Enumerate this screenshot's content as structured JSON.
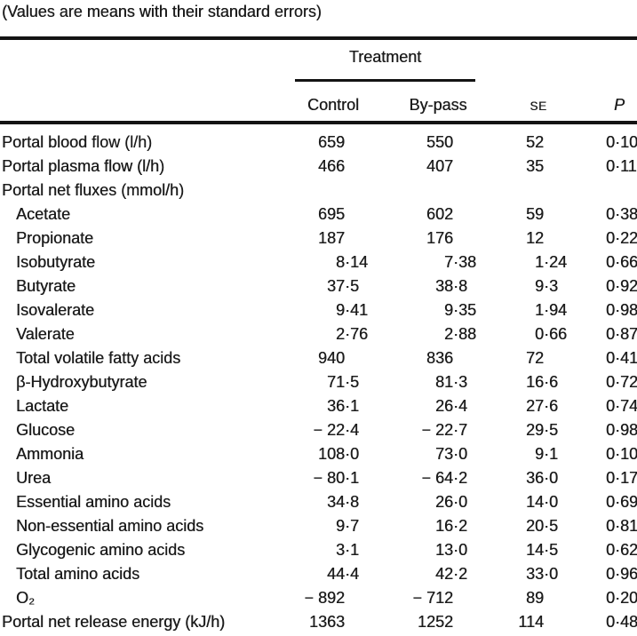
{
  "caption": "(Values are means with their standard errors)",
  "header": {
    "group_label": "Treatment",
    "control": "Control",
    "bypass": "By-pass",
    "se": "SE",
    "p": "P"
  },
  "table": {
    "rows": [
      {
        "label": "Portal blood flow (l/h)",
        "indent": false,
        "control": "659",
        "bypass": "550",
        "se": "52",
        "p": "0·10"
      },
      {
        "label": "Portal plasma flow (l/h)",
        "indent": false,
        "control": "466",
        "bypass": "407",
        "se": "35",
        "p": "0·11"
      },
      {
        "label": "Portal net fluxes (mmol/h)",
        "indent": false,
        "control": "",
        "bypass": "",
        "se": "",
        "p": ""
      },
      {
        "label": "Acetate",
        "indent": true,
        "control": "695",
        "bypass": "602",
        "se": "59",
        "p": "0·38"
      },
      {
        "label": "Propionate",
        "indent": true,
        "control": "187",
        "bypass": "176",
        "se": "12",
        "p": "0·22"
      },
      {
        "label": "Isobutyrate",
        "indent": true,
        "control": "8·14",
        "bypass": "7·38",
        "se": "1·24",
        "p": "0·66"
      },
      {
        "label": "Butyrate",
        "indent": true,
        "control": "37·5",
        "bypass": "38·8",
        "se": "9·3",
        "p": "0·92"
      },
      {
        "label": "Isovalerate",
        "indent": true,
        "control": "9·41",
        "bypass": "9·35",
        "se": "1·94",
        "p": "0·98"
      },
      {
        "label": "Valerate",
        "indent": true,
        "control": "2·76",
        "bypass": "2·88",
        "se": "0·66",
        "p": "0·87"
      },
      {
        "label": "Total volatile fatty acids",
        "indent": true,
        "control": "940",
        "bypass": "836",
        "se": "72",
        "p": "0·41"
      },
      {
        "label": "β-Hydroxybutyrate",
        "indent": true,
        "control": "71·5",
        "bypass": "81·3",
        "se": "16·6",
        "p": "0·72"
      },
      {
        "label": "Lactate",
        "indent": true,
        "control": "36·1",
        "bypass": "26·4",
        "se": "27·6",
        "p": "0·74"
      },
      {
        "label": "Glucose",
        "indent": true,
        "control": "− 22·4",
        "bypass": "− 22·7",
        "se": "29·5",
        "p": "0·98"
      },
      {
        "label": "Ammonia",
        "indent": true,
        "control": "108·0",
        "bypass": "73·0",
        "se": "9·1",
        "p": "0·10"
      },
      {
        "label": "Urea",
        "indent": true,
        "control": "− 80·1",
        "bypass": "− 64·2",
        "se": "36·0",
        "p": "0·17"
      },
      {
        "label": "Essential amino acids",
        "indent": true,
        "control": "34·8",
        "bypass": "26·0",
        "se": "14·0",
        "p": "0·69"
      },
      {
        "label": "Non-essential amino acids",
        "indent": true,
        "control": "9·7",
        "bypass": "16·2",
        "se": "20·5",
        "p": "0·81"
      },
      {
        "label": "Glycogenic amino acids",
        "indent": true,
        "control": "3·1",
        "bypass": "13·0",
        "se": "14·5",
        "p": "0·62"
      },
      {
        "label": "Total amino acids",
        "indent": true,
        "control": "44·4",
        "bypass": "42·2",
        "se": "33·0",
        "p": "0·96"
      },
      {
        "label": "O₂",
        "indent": true,
        "control": "− 892",
        "bypass": "− 712",
        "se": "89",
        "p": "0·20"
      },
      {
        "label": "Portal net release energy (kJ/h)",
        "indent": false,
        "control": "1363",
        "bypass": "1252",
        "se": "114",
        "p": "0·48"
      }
    ]
  }
}
